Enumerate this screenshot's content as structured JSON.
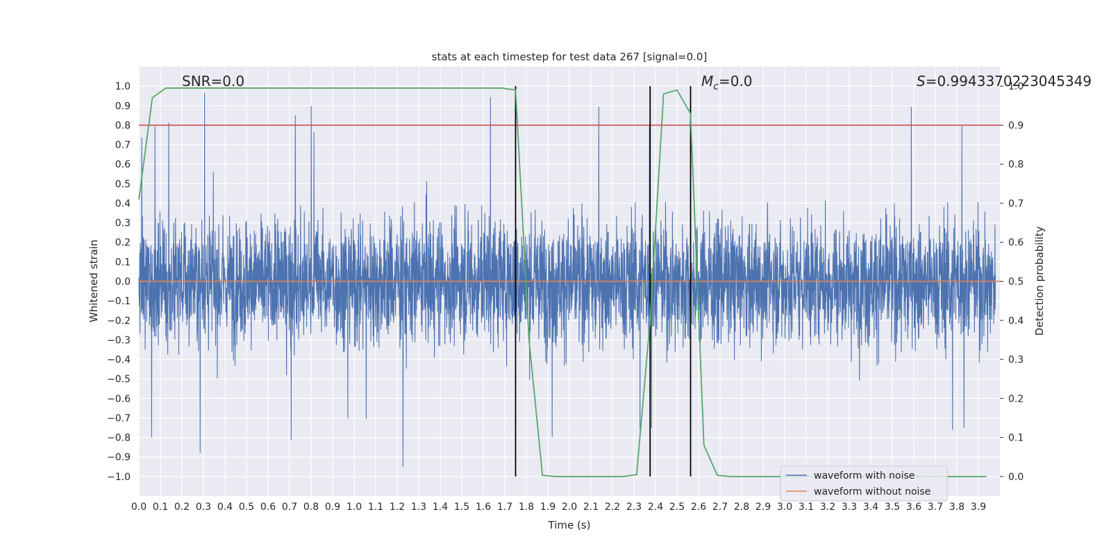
{
  "chart_data": {
    "type": "line",
    "title": "stats at each timestep for test data 267 [signal=0.0]",
    "xlabel": "Time (s)",
    "ylabel": "Whitened strain",
    "y2label": "Detection probability",
    "xlim": [
      0.0,
      4.0
    ],
    "ylim": [
      -1.1,
      1.1
    ],
    "y2lim": [
      -0.05,
      1.05
    ],
    "xticks": [
      "0.0",
      "0.1",
      "0.2",
      "0.3",
      "0.4",
      "0.5",
      "0.6",
      "0.7",
      "0.8",
      "0.9",
      "1.0",
      "1.1",
      "1.2",
      "1.3",
      "1.4",
      "1.5",
      "1.6",
      "1.7",
      "1.8",
      "1.9",
      "2.0",
      "2.1",
      "2.2",
      "2.3",
      "2.4",
      "2.5",
      "2.6",
      "2.7",
      "2.8",
      "2.9",
      "3.0",
      "3.1",
      "3.2",
      "3.3",
      "3.4",
      "3.5",
      "3.6",
      "3.7",
      "3.8",
      "3.9"
    ],
    "yticks": [
      "1.0",
      "0.9",
      "0.8",
      "0.7",
      "0.6",
      "0.5",
      "0.4",
      "0.3",
      "0.2",
      "0.1",
      "0.0",
      "−0.1",
      "−0.2",
      "−0.3",
      "−0.4",
      "−0.5",
      "−0.6",
      "−0.7",
      "−0.8",
      "−0.9",
      "−1.0"
    ],
    "y2ticks": [
      "1.0",
      "0.9",
      "0.8",
      "0.7",
      "0.6",
      "0.5",
      "0.4",
      "0.3",
      "0.2",
      "0.1",
      "0.0"
    ],
    "annotations": {
      "snr": "SNR=0.0",
      "mc": "=0.0",
      "mc_symbol": "M",
      "mc_sub": "c",
      "s": "=0.9943370223045349",
      "s_symbol": "S"
    },
    "threshold_y2": 0.9,
    "vlines_x": [
      1.75,
      2.375,
      2.563
    ],
    "series": [
      {
        "name": "waveform with noise",
        "color": "#4c72b0",
        "axis": "left",
        "note": "noise approx. within [-1.0, 0.97], std ~0.3"
      },
      {
        "name": "waveform without noise",
        "color": "#dd8452",
        "axis": "left",
        "value": 0.0
      },
      {
        "name": "Detection probability",
        "color": "#55a868",
        "axis": "right",
        "x": [
          0.0,
          0.0625,
          0.125,
          1.6875,
          1.75,
          1.8125,
          1.875,
          1.9375,
          2.25,
          2.3125,
          2.375,
          2.4375,
          2.5,
          2.5625,
          2.625,
          2.6875,
          2.75,
          3.9375
        ],
        "values": [
          0.71,
          0.97,
          0.995,
          0.995,
          0.99,
          0.35,
          0.003,
          0.0,
          0.0,
          0.005,
          0.4,
          0.98,
          0.99,
          0.93,
          0.08,
          0.003,
          0.0,
          0.0
        ]
      }
    ],
    "legend": [
      "waveform with noise",
      "waveform without noise"
    ],
    "legend_position": "lower-right",
    "grid": true
  },
  "colors": {
    "axes_bg": "#eaeaf2",
    "grid": "#ffffff",
    "noise": "#4c72b0",
    "clean": "#dd8452",
    "prob": "#55a868",
    "threshold": "#c44e52",
    "vline": "#000000"
  }
}
